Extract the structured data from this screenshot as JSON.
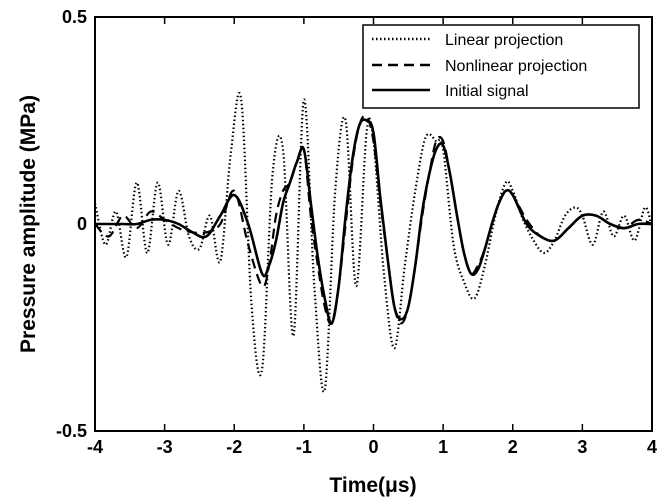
{
  "chart_data": {
    "type": "line",
    "title": "",
    "xlabel": "Time(μs)",
    "ylabel": "Pressure amplitude (MPa)",
    "xlim": [
      -4,
      4
    ],
    "ylim": [
      -0.5,
      0.5
    ],
    "xticks": [
      -4,
      -3,
      -2,
      -1,
      0,
      1,
      2,
      3,
      4
    ],
    "xtick_labels": [
      "-4",
      "-3",
      "-2",
      "-1",
      "0",
      "1",
      "2",
      "3",
      "4"
    ],
    "yticks": [
      -0.5,
      0,
      0.5
    ],
    "ytick_labels": [
      "-0.5",
      "0",
      "0.5"
    ],
    "grid": false,
    "legend_position": "top-right",
    "series": [
      {
        "name": "Linear projection",
        "style": "dotted",
        "color": "#000000",
        "x": [
          -4.0,
          -3.85,
          -3.7,
          -3.55,
          -3.4,
          -3.25,
          -3.1,
          -2.95,
          -2.8,
          -2.65,
          -2.5,
          -2.35,
          -2.2,
          -2.05,
          -1.9,
          -1.75,
          -1.6,
          -1.45,
          -1.3,
          -1.15,
          -1.0,
          -0.85,
          -0.7,
          -0.55,
          -0.4,
          -0.25,
          -0.1,
          0.0,
          0.15,
          0.3,
          0.45,
          0.6,
          0.75,
          0.9,
          1.0,
          1.15,
          1.3,
          1.45,
          1.6,
          1.75,
          1.9,
          2.0,
          2.15,
          2.3,
          2.45,
          2.6,
          2.75,
          2.9,
          3.0,
          3.15,
          3.3,
          3.45,
          3.6,
          3.75,
          3.9,
          4.0
        ],
        "values": [
          0.05,
          -0.05,
          0.03,
          -0.08,
          0.1,
          -0.07,
          0.1,
          -0.05,
          0.08,
          -0.03,
          -0.06,
          0.02,
          -0.09,
          0.17,
          0.3,
          -0.2,
          -0.35,
          0.12,
          0.18,
          -0.27,
          0.3,
          -0.15,
          -0.4,
          0.08,
          0.25,
          -0.15,
          0.22,
          0.2,
          -0.12,
          -0.3,
          -0.1,
          0.08,
          0.21,
          0.2,
          0.18,
          -0.05,
          -0.14,
          -0.18,
          -0.1,
          0.02,
          0.1,
          0.08,
          0.01,
          -0.04,
          -0.07,
          -0.04,
          0.02,
          0.04,
          0.02,
          -0.05,
          0.03,
          -0.03,
          0.02,
          -0.04,
          0.04,
          -0.01
        ]
      },
      {
        "name": "Nonlinear projection",
        "style": "dashed",
        "color": "#000000",
        "x": [
          -4.0,
          -3.8,
          -3.6,
          -3.4,
          -3.2,
          -3.0,
          -2.8,
          -2.6,
          -2.4,
          -2.2,
          -2.0,
          -1.8,
          -1.6,
          -1.5,
          -1.4,
          -1.3,
          -1.2,
          -1.1,
          -1.0,
          -0.9,
          -0.8,
          -0.7,
          -0.6,
          -0.5,
          -0.4,
          -0.3,
          -0.2,
          -0.1,
          0.0,
          0.1,
          0.2,
          0.3,
          0.4,
          0.5,
          0.6,
          0.7,
          0.8,
          0.9,
          1.0,
          1.1,
          1.2,
          1.3,
          1.4,
          1.5,
          1.6,
          1.7,
          1.8,
          1.9,
          2.0,
          2.2,
          2.4,
          2.6,
          2.8,
          3.0,
          3.2,
          3.4,
          3.6,
          3.8,
          4.0
        ],
        "values": [
          0.0,
          -0.03,
          0.02,
          -0.01,
          0.03,
          0.01,
          -0.01,
          -0.02,
          -0.02,
          0.0,
          0.08,
          -0.05,
          -0.15,
          -0.1,
          0.02,
          0.08,
          0.1,
          0.15,
          0.18,
          0.02,
          -0.1,
          -0.2,
          -0.24,
          -0.15,
          0.0,
          0.15,
          0.24,
          0.26,
          0.2,
          0.05,
          -0.08,
          -0.2,
          -0.24,
          -0.2,
          -0.1,
          0.02,
          0.12,
          0.2,
          0.2,
          0.12,
          0.02,
          -0.07,
          -0.12,
          -0.1,
          -0.06,
          0.0,
          0.05,
          0.08,
          0.07,
          0.01,
          -0.03,
          -0.04,
          -0.01,
          0.02,
          0.02,
          0.0,
          -0.01,
          0.01,
          0.0
        ]
      },
      {
        "name": "Initial signal",
        "style": "solid",
        "color": "#000000",
        "x": [
          -4.0,
          -3.8,
          -3.6,
          -3.4,
          -3.2,
          -3.0,
          -2.8,
          -2.6,
          -2.4,
          -2.2,
          -2.0,
          -1.8,
          -1.6,
          -1.5,
          -1.4,
          -1.3,
          -1.2,
          -1.1,
          -1.0,
          -0.9,
          -0.8,
          -0.7,
          -0.6,
          -0.5,
          -0.4,
          -0.3,
          -0.2,
          -0.1,
          0.0,
          0.1,
          0.2,
          0.3,
          0.4,
          0.5,
          0.6,
          0.7,
          0.8,
          0.9,
          1.0,
          1.1,
          1.2,
          1.3,
          1.4,
          1.5,
          1.6,
          1.7,
          1.8,
          1.9,
          2.0,
          2.2,
          2.4,
          2.6,
          2.8,
          3.0,
          3.2,
          3.4,
          3.6,
          3.8,
          4.0
        ],
        "values": [
          0.0,
          0.0,
          0.0,
          0.0,
          0.01,
          0.01,
          0.0,
          -0.02,
          -0.03,
          0.02,
          0.07,
          0.0,
          -0.12,
          -0.1,
          -0.04,
          0.05,
          0.1,
          0.15,
          0.18,
          0.05,
          -0.08,
          -0.18,
          -0.24,
          -0.15,
          0.02,
          0.16,
          0.24,
          0.25,
          0.22,
          0.06,
          -0.08,
          -0.2,
          -0.23,
          -0.2,
          -0.1,
          0.03,
          0.12,
          0.18,
          0.19,
          0.12,
          0.02,
          -0.07,
          -0.12,
          -0.11,
          -0.06,
          0.0,
          0.05,
          0.08,
          0.07,
          0.0,
          -0.03,
          -0.04,
          -0.01,
          0.02,
          0.02,
          0.0,
          -0.01,
          0.0,
          0.0
        ]
      }
    ]
  }
}
